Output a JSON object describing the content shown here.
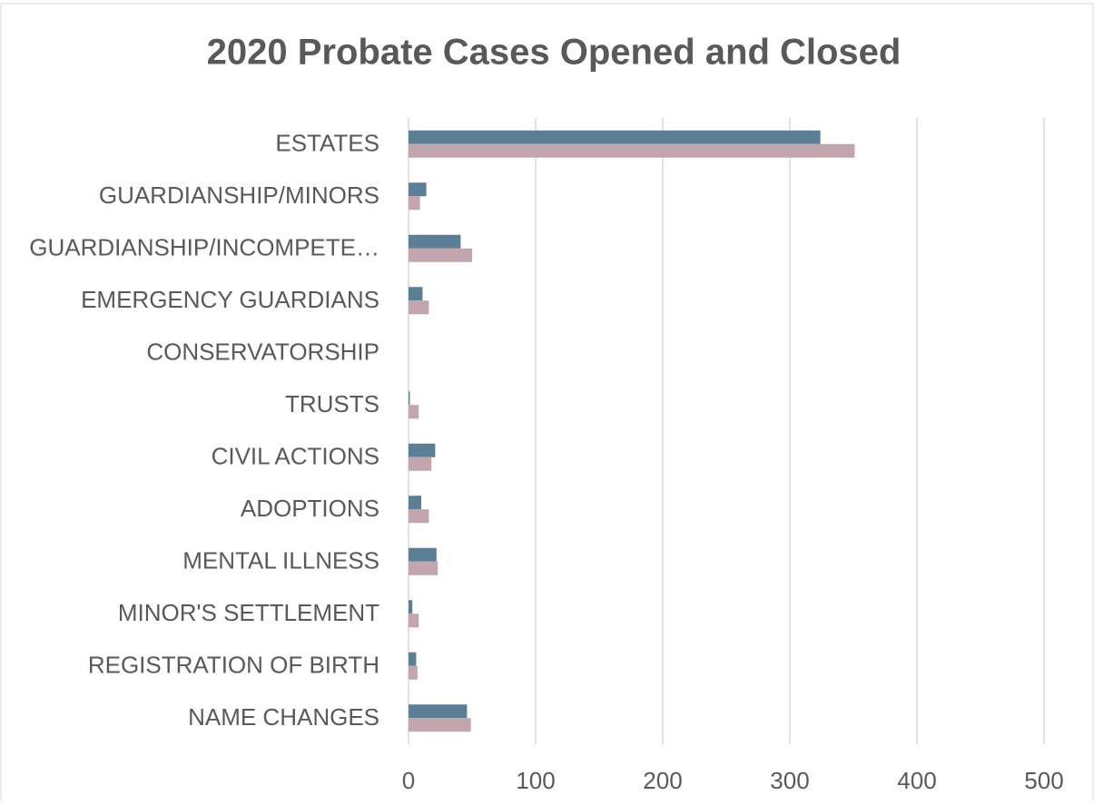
{
  "chart_data": {
    "type": "hbar",
    "title": "2020 Probate Cases Opened and Closed",
    "categories": [
      "ESTATES",
      "GUARDIANSHIP/MINORS",
      "GUARDIANSHIP/INCOMPETE…",
      "EMERGENCY GUARDIANS",
      "CONSERVATORSHIP",
      "TRUSTS",
      "CIVIL ACTIONS",
      "ADOPTIONS",
      "MENTAL ILLNESS",
      "MINOR'S SETTLEMENT",
      "REGISTRATION OF BIRTH",
      "NAME CHANGES"
    ],
    "series": [
      {
        "color": "#5b7f95",
        "values": [
          324,
          14,
          41,
          11,
          0,
          1,
          21,
          10,
          22,
          3,
          6,
          46
        ]
      },
      {
        "color": "#c2a5ad",
        "values": [
          351,
          9,
          50,
          16,
          0,
          8,
          18,
          16,
          23,
          8,
          7,
          49
        ]
      }
    ],
    "xlim": [
      0,
      500
    ],
    "xticks": [
      0,
      100,
      200,
      300,
      400,
      500
    ],
    "grid": true
  }
}
